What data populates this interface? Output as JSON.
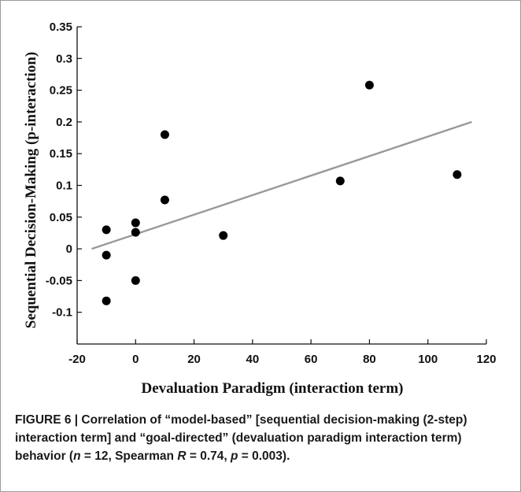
{
  "chart_data": {
    "type": "scatter",
    "xlabel": "Devaluation Paradigm (interaction term)",
    "ylabel": "Sequential Decision-Making (p-interaction)",
    "xlim": [
      -20,
      120
    ],
    "ylim": [
      -0.15,
      0.35
    ],
    "x_ticks": [
      -20,
      0,
      20,
      40,
      60,
      80,
      100,
      120
    ],
    "y_ticks": [
      0.35,
      0.3,
      0.25,
      0.2,
      0.15,
      0.1,
      0.05,
      0,
      -0.05,
      -0.1
    ],
    "x_tick_labels": [
      "-20",
      "0",
      "20",
      "40",
      "60",
      "80",
      "100",
      "120"
    ],
    "y_tick_labels": [
      "0.35",
      "0.3",
      "0.25",
      "0.2",
      "0.15",
      "0.1",
      "0.05",
      "0",
      "-0.05",
      "-0.1"
    ],
    "points": [
      {
        "x": -10,
        "y": 0.03
      },
      {
        "x": -10,
        "y": -0.01
      },
      {
        "x": -10,
        "y": -0.082
      },
      {
        "x": 0,
        "y": 0.041
      },
      {
        "x": 0,
        "y": 0.026
      },
      {
        "x": 0,
        "y": -0.05
      },
      {
        "x": 10,
        "y": 0.18
      },
      {
        "x": 10,
        "y": 0.077
      },
      {
        "x": 30,
        "y": 0.021
      },
      {
        "x": 70,
        "y": 0.107
      },
      {
        "x": 80,
        "y": 0.258
      },
      {
        "x": 110,
        "y": 0.117
      }
    ],
    "trendline": {
      "x": [
        -15,
        115
      ],
      "y": [
        0.0,
        0.2
      ],
      "color": "#999999"
    },
    "point_color": "#000000",
    "grid": false
  },
  "caption": {
    "part1": "FIGURE 6 | Correlation of “model-based” [sequential decision-making (2-step) interaction term] and “goal-directed” (devaluation paradigm interaction term) behavior (",
    "n_symbol": "n",
    "part2": " = 12, Spearman ",
    "R_symbol": "R",
    "part3": " = 0.74, ",
    "p_symbol": "p",
    "part4": " = 0.003)."
  }
}
